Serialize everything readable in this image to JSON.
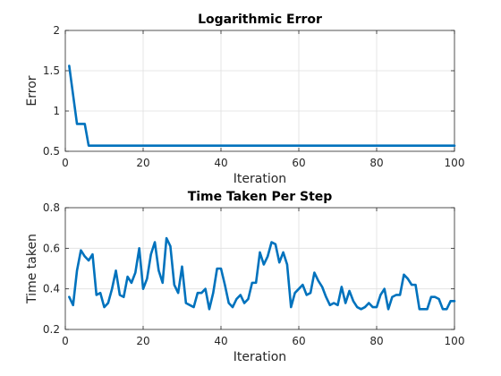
{
  "chart_data": [
    {
      "type": "line",
      "title": "Logarithmic Error",
      "xlabel": "Iteration",
      "ylabel": "Error",
      "xlim": [
        0,
        100
      ],
      "ylim": [
        0.5,
        2
      ],
      "xticks": [
        0,
        20,
        40,
        60,
        80,
        100
      ],
      "yticks": [
        0.5,
        1,
        1.5,
        2
      ],
      "yticklabels": [
        "0.5",
        "1",
        "1.5",
        "2"
      ],
      "grid": true,
      "series": [
        {
          "color": "#0072bd",
          "x": [
            1,
            2,
            3,
            4,
            5,
            6,
            7,
            8,
            9,
            10,
            11,
            12,
            13,
            14,
            15,
            16,
            17,
            18,
            19,
            20,
            21,
            22,
            23,
            24,
            25,
            26,
            27,
            28,
            29,
            30,
            31,
            32,
            33,
            34,
            35,
            36,
            37,
            38,
            39,
            40,
            41,
            42,
            43,
            44,
            45,
            46,
            47,
            48,
            49,
            50,
            51,
            52,
            53,
            54,
            55,
            56,
            57,
            58,
            59,
            60,
            61,
            62,
            63,
            64,
            65,
            66,
            67,
            68,
            69,
            70,
            71,
            72,
            73,
            74,
            75,
            76,
            77,
            78,
            79,
            80,
            81,
            82,
            83,
            84,
            85,
            86,
            87,
            88,
            89,
            90,
            91,
            92,
            93,
            94,
            95,
            96,
            97,
            98,
            99,
            100
          ],
          "y": [
            1.56,
            1.2,
            0.84,
            0.84,
            0.84,
            0.57,
            0.57,
            0.57,
            0.57,
            0.57,
            0.57,
            0.57,
            0.57,
            0.57,
            0.57,
            0.57,
            0.57,
            0.57,
            0.57,
            0.57,
            0.57,
            0.57,
            0.57,
            0.57,
            0.57,
            0.57,
            0.57,
            0.57,
            0.57,
            0.57,
            0.57,
            0.57,
            0.57,
            0.57,
            0.57,
            0.57,
            0.57,
            0.57,
            0.57,
            0.57,
            0.57,
            0.57,
            0.57,
            0.57,
            0.57,
            0.57,
            0.57,
            0.57,
            0.57,
            0.57,
            0.57,
            0.57,
            0.57,
            0.57,
            0.57,
            0.57,
            0.57,
            0.57,
            0.57,
            0.57,
            0.57,
            0.57,
            0.57,
            0.57,
            0.57,
            0.57,
            0.57,
            0.57,
            0.57,
            0.57,
            0.57,
            0.57,
            0.57,
            0.57,
            0.57,
            0.57,
            0.57,
            0.57,
            0.57,
            0.57,
            0.57,
            0.57,
            0.57,
            0.57,
            0.57,
            0.57,
            0.57,
            0.57,
            0.57,
            0.57,
            0.57,
            0.57,
            0.57,
            0.57,
            0.57,
            0.57,
            0.57,
            0.57,
            0.57,
            0.57
          ]
        }
      ]
    },
    {
      "type": "line",
      "title": "Time Taken Per Step",
      "xlabel": "Iteration",
      "ylabel": "Time taken",
      "xlim": [
        0,
        100
      ],
      "ylim": [
        0.2,
        0.8
      ],
      "xticks": [
        0,
        20,
        40,
        60,
        80,
        100
      ],
      "yticks": [
        0.2,
        0.4,
        0.6,
        0.8
      ],
      "yticklabels": [
        "0.2",
        "0.4",
        "0.6",
        "0.8"
      ],
      "grid": true,
      "series": [
        {
          "color": "#0072bd",
          "x": [
            1,
            2,
            3,
            4,
            5,
            6,
            7,
            8,
            9,
            10,
            11,
            12,
            13,
            14,
            15,
            16,
            17,
            18,
            19,
            20,
            21,
            22,
            23,
            24,
            25,
            26,
            27,
            28,
            29,
            30,
            31,
            32,
            33,
            34,
            35,
            36,
            37,
            38,
            39,
            40,
            41,
            42,
            43,
            44,
            45,
            46,
            47,
            48,
            49,
            50,
            51,
            52,
            53,
            54,
            55,
            56,
            57,
            58,
            59,
            60,
            61,
            62,
            63,
            64,
            65,
            66,
            67,
            68,
            69,
            70,
            71,
            72,
            73,
            74,
            75,
            76,
            77,
            78,
            79,
            80,
            81,
            82,
            83,
            84,
            85,
            86,
            87,
            88,
            89,
            90,
            91,
            92,
            93,
            94,
            95,
            96,
            97,
            98,
            99,
            100
          ],
          "y": [
            0.36,
            0.32,
            0.49,
            0.59,
            0.56,
            0.54,
            0.57,
            0.37,
            0.38,
            0.31,
            0.33,
            0.4,
            0.49,
            0.37,
            0.36,
            0.46,
            0.43,
            0.48,
            0.6,
            0.4,
            0.45,
            0.57,
            0.63,
            0.49,
            0.43,
            0.65,
            0.61,
            0.42,
            0.38,
            0.51,
            0.33,
            0.32,
            0.31,
            0.38,
            0.38,
            0.4,
            0.3,
            0.38,
            0.5,
            0.5,
            0.42,
            0.33,
            0.31,
            0.35,
            0.37,
            0.33,
            0.35,
            0.43,
            0.43,
            0.58,
            0.52,
            0.56,
            0.63,
            0.62,
            0.53,
            0.58,
            0.52,
            0.31,
            0.38,
            0.4,
            0.42,
            0.37,
            0.38,
            0.48,
            0.44,
            0.41,
            0.36,
            0.32,
            0.33,
            0.32,
            0.41,
            0.33,
            0.39,
            0.34,
            0.31,
            0.3,
            0.31,
            0.33,
            0.31,
            0.31,
            0.37,
            0.4,
            0.3,
            0.36,
            0.37,
            0.37,
            0.47,
            0.45,
            0.42,
            0.42,
            0.3,
            0.3,
            0.3,
            0.36,
            0.36,
            0.35,
            0.3,
            0.3,
            0.34,
            0.34
          ]
        }
      ]
    }
  ]
}
